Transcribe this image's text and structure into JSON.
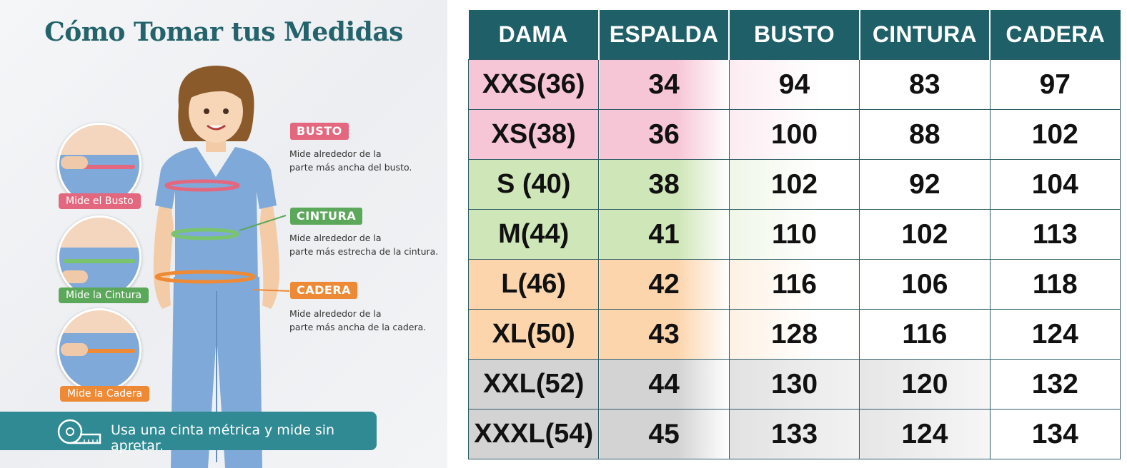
{
  "guide": {
    "title": "Cómo Tomar tus Medidas",
    "circles": [
      {
        "label": "Mide el Busto",
        "color": "#e3687f"
      },
      {
        "label": "Mide la Cintura",
        "color": "#5ba85a"
      },
      {
        "label": "Mide la Cadera",
        "color": "#ee8a35"
      }
    ],
    "callouts": [
      {
        "tag": "BUSTO",
        "color": "#e3687f",
        "line1": "Mide alrededor de la",
        "line2": "parte más ancha del busto."
      },
      {
        "tag": "CINTURA",
        "color": "#5ba85a",
        "line1": "Mide alrededor de la",
        "line2": "parte más estrecha de la cintura."
      },
      {
        "tag": "CADERA",
        "color": "#ee8a35",
        "line1": "Mide alrededor de la",
        "line2": "parte más ancha de la cadera."
      }
    ],
    "tip": "Usa una cinta métrica y mide sin apretar."
  },
  "table": {
    "headers": [
      "DAMA",
      "ESPALDA",
      "BUSTO",
      "CINTURA",
      "CADERA"
    ],
    "header_color": "#1e5f68",
    "rows": [
      {
        "size": "XXS(36)",
        "espalda": "34",
        "busto": "94",
        "cintura": "83",
        "cadera": "97",
        "color": "#f7c6d6"
      },
      {
        "size": "XS(38)",
        "espalda": "36",
        "busto": "100",
        "cintura": "88",
        "cadera": "102",
        "color": "#f7c6d6"
      },
      {
        "size": "S (40)",
        "espalda": "38",
        "busto": "102",
        "cintura": "92",
        "cadera": "104",
        "color": "#cfe6b8"
      },
      {
        "size": "M(44)",
        "espalda": "41",
        "busto": "110",
        "cintura": "102",
        "cadera": "113",
        "color": "#cfe6b8"
      },
      {
        "size": "L(46)",
        "espalda": "42",
        "busto": "116",
        "cintura": "106",
        "cadera": "118",
        "color": "#fdd5ad"
      },
      {
        "size": "XL(50)",
        "espalda": "43",
        "busto": "128",
        "cintura": "116",
        "cadera": "124",
        "color": "#fdd5ad"
      },
      {
        "size": "XXL(52)",
        "espalda": "44",
        "busto": "130",
        "cintura": "120",
        "cadera": "132",
        "color": "#d3d3d3"
      },
      {
        "size": "XXXL(54)",
        "espalda": "45",
        "busto": "133",
        "cintura": "124",
        "cadera": "134",
        "color": "#d3d3d3"
      }
    ]
  }
}
